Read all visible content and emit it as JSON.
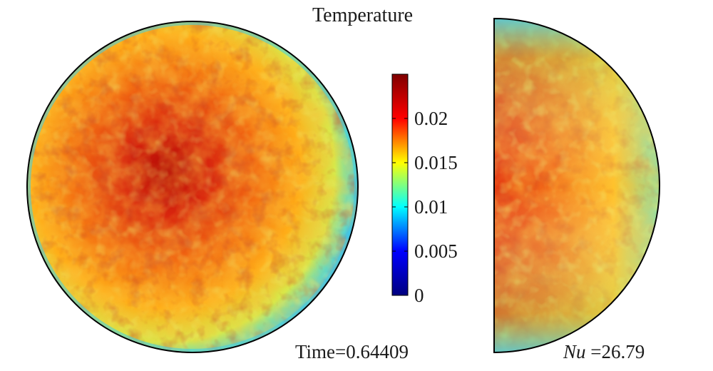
{
  "title": "Temperature",
  "time_label": "Time=0.64409",
  "nu": {
    "symbol": "Nu",
    "text": " =26.79"
  },
  "colorbar": {
    "min": 0,
    "max": 0.025,
    "ticks": [
      "0",
      "0.005",
      "0.01",
      "0.015",
      "0.02"
    ],
    "tick_values": [
      0,
      0.005,
      0.01,
      0.015,
      0.02
    ],
    "colormap": "jet",
    "colors": [
      "#00007f",
      "#0000ff",
      "#00ffff",
      "#ffff00",
      "#ff0000",
      "#7f0000"
    ]
  },
  "panels": [
    {
      "name": "top-view-disk",
      "shape": "circle"
    },
    {
      "name": "side-view-half-disk",
      "shape": "half-circle"
    }
  ]
}
